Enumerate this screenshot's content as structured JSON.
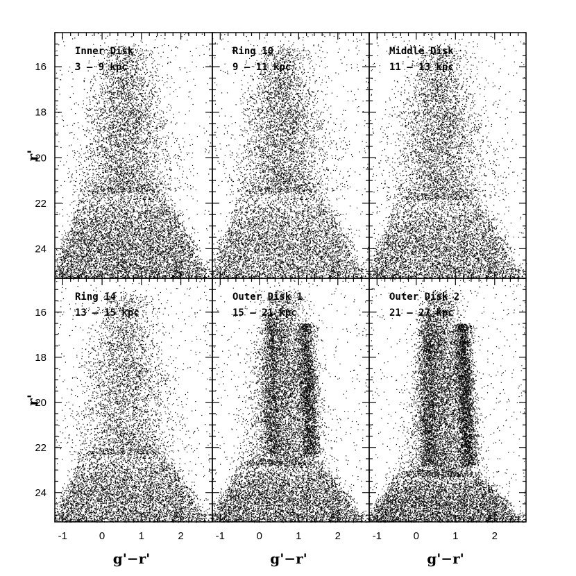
{
  "chart_data": {
    "type": "scatter",
    "layout": "2x3 grid of color-magnitude diagrams, shared axes",
    "xlabel": "g'−r'",
    "ylabel": "r'",
    "xlim": [
      -1.2,
      2.8
    ],
    "ylim": [
      25.3,
      14.5
    ],
    "y_inverted": true,
    "x_ticks": [
      "-1",
      "0",
      "1",
      "2"
    ],
    "y_ticks": [
      "16",
      "18",
      "20",
      "22",
      "24"
    ],
    "grid": false,
    "marker": "point",
    "color": "#000000",
    "panels": [
      {
        "name": "Inner Disk",
        "range": "3 – 9 kpc"
      },
      {
        "name": "Ring 10",
        "range": "9 – 11 kpc"
      },
      {
        "name": "Middle Disk",
        "range": "11 – 13 kpc"
      },
      {
        "name": "Ring 14",
        "range": "13 – 15 kpc"
      },
      {
        "name": "Outer Disk 1",
        "range": "15 – 21 kpc"
      },
      {
        "name": "Outer Disk 2",
        "range": "21 – 27 kpc"
      }
    ]
  }
}
